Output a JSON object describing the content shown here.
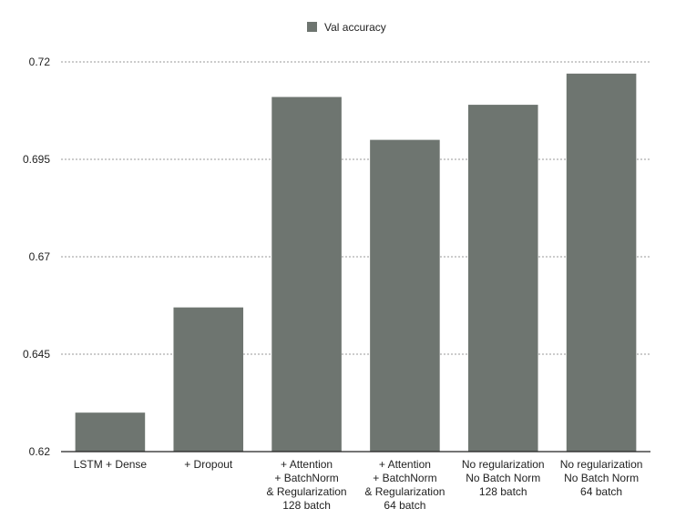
{
  "chart_data": {
    "type": "bar",
    "categories": [
      [
        "LSTM + Dense"
      ],
      [
        "+ Dropout"
      ],
      [
        "+ Attention",
        "+ BatchNorm",
        "& Regularization",
        "128 batch"
      ],
      [
        "+ Attention",
        "+ BatchNorm",
        "& Regularization",
        "64 batch"
      ],
      [
        "No regularization",
        "No Batch Norm",
        "128 batch"
      ],
      [
        "No regularization",
        "No Batch Norm",
        "64 batch"
      ]
    ],
    "series": [
      {
        "name": "Val accuracy",
        "values": [
          0.63,
          0.657,
          0.711,
          0.7,
          0.709,
          0.717
        ]
      }
    ],
    "ylim": [
      0.62,
      0.72
    ],
    "yticks": [
      "0.62",
      "0.645",
      "0.67",
      "0.695",
      "0.72"
    ],
    "grid": "horizontal-dashed",
    "legend_position": "top-center",
    "bar_color": "#6e7570",
    "grid_color": "#9a9a9a",
    "axis_color": "#222222"
  }
}
